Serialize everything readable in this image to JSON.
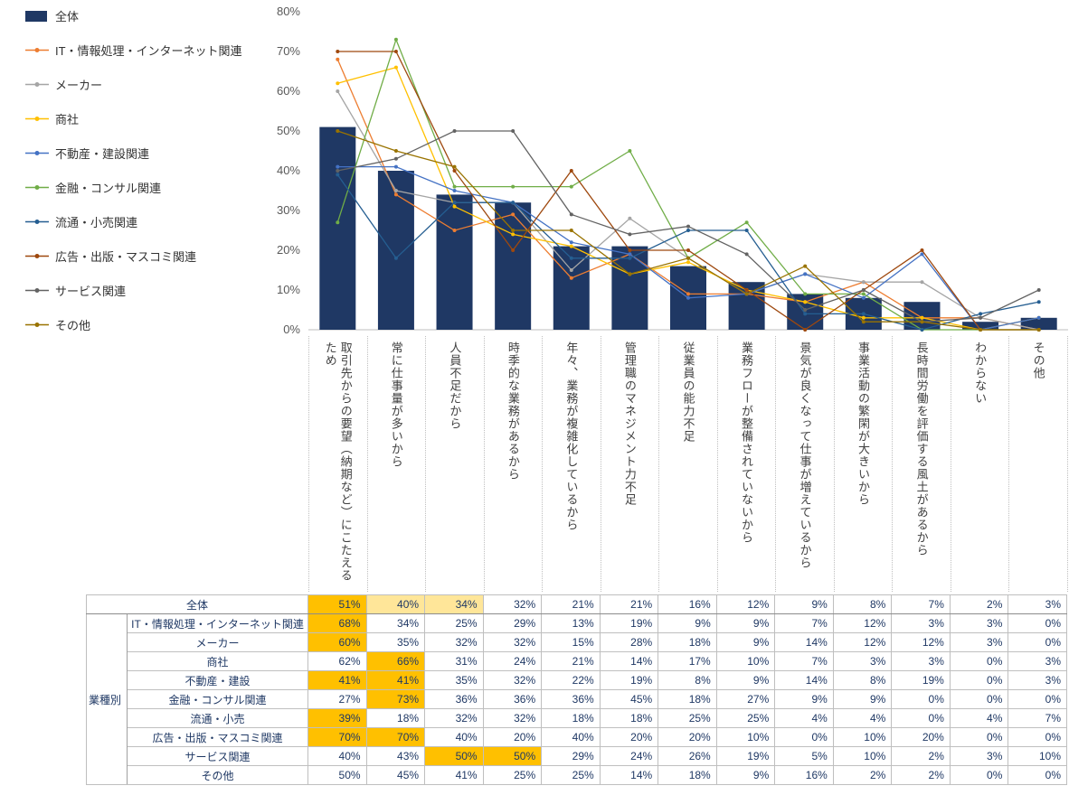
{
  "colors": {
    "bar": "#1F3864",
    "axis_text": "#595959",
    "axis_line": "#BFBFBF",
    "highlight_strong": "#FFC000",
    "highlight_light": "#FFE699"
  },
  "chart_data": {
    "type": "bar+line",
    "title": "",
    "ylim": [
      0,
      80
    ],
    "ytick_step": 10,
    "y_axis_format": "percent",
    "grid": false,
    "legend_position": "left",
    "categories": [
      "取引先からの要望（納期など）にこたえるため",
      "常に仕事量が多いから",
      "人員不足だから",
      "時季的な業務があるから",
      "年々、業務が複雑化しているから",
      "管理職のマネジメント力不足",
      "従業員の能力不足",
      "業務フローが整備されていないから",
      "景気が良くなって仕事が増えているから",
      "事業活動の繁閑が大きいから",
      "長時間労働を評価する風土があるから",
      "わからない",
      "その他"
    ],
    "bar_series": {
      "name": "全体",
      "color": "#1F3864",
      "values": [
        51,
        40,
        34,
        32,
        21,
        21,
        16,
        12,
        9,
        8,
        7,
        2,
        3
      ]
    },
    "line_series": [
      {
        "name": "IT・情報処理・インターネット関連",
        "color": "#ED7D31",
        "values": [
          68,
          34,
          25,
          29,
          13,
          19,
          9,
          9,
          7,
          12,
          3,
          3,
          0
        ]
      },
      {
        "name": "メーカー",
        "color": "#A5A5A5",
        "values": [
          60,
          35,
          32,
          32,
          15,
          28,
          18,
          9,
          14,
          12,
          12,
          3,
          0
        ]
      },
      {
        "name": "商社",
        "color": "#FFC000",
        "values": [
          62,
          66,
          31,
          24,
          21,
          14,
          17,
          10,
          7,
          3,
          3,
          0,
          3
        ]
      },
      {
        "name": "不動産・建設関連",
        "color": "#4472C4",
        "values": [
          41,
          41,
          35,
          32,
          22,
          19,
          8,
          9,
          14,
          8,
          19,
          0,
          3
        ]
      },
      {
        "name": "金融・コンサル関連",
        "color": "#70AD47",
        "values": [
          27,
          73,
          36,
          36,
          36,
          45,
          18,
          27,
          9,
          9,
          0,
          0,
          0
        ]
      },
      {
        "name": "流通・小売関連",
        "color": "#255E91",
        "values": [
          39,
          18,
          32,
          32,
          18,
          18,
          25,
          25,
          4,
          4,
          0,
          4,
          7
        ]
      },
      {
        "name": "広告・出版・マスコミ関連",
        "color": "#9E480E",
        "values": [
          70,
          70,
          40,
          20,
          40,
          20,
          20,
          10,
          0,
          10,
          20,
          0,
          0
        ]
      },
      {
        "name": "サービス関連",
        "color": "#636363",
        "values": [
          40,
          43,
          50,
          50,
          29,
          24,
          26,
          19,
          5,
          10,
          2,
          3,
          10
        ]
      },
      {
        "name": "その他",
        "color": "#997300",
        "values": [
          50,
          45,
          41,
          25,
          25,
          14,
          18,
          9,
          16,
          2,
          2,
          0,
          0
        ]
      }
    ]
  },
  "table": {
    "group_label": "業種別",
    "value_suffix": "%",
    "overall": {
      "label": "全体",
      "values": [
        51,
        40,
        34,
        32,
        21,
        21,
        16,
        12,
        9,
        8,
        7,
        2,
        3
      ],
      "highlights": {
        "0": "strong",
        "1": "light",
        "2": "light"
      }
    },
    "industry_rows": [
      {
        "label": "IT・情報処理・インターネット関連",
        "values": [
          68,
          34,
          25,
          29,
          13,
          19,
          9,
          9,
          7,
          12,
          3,
          3,
          0
        ],
        "highlights": {
          "0": "strong"
        }
      },
      {
        "label": "メーカー",
        "values": [
          60,
          35,
          32,
          32,
          15,
          28,
          18,
          9,
          14,
          12,
          12,
          3,
          0
        ],
        "highlights": {
          "0": "strong"
        }
      },
      {
        "label": "商社",
        "values": [
          62,
          66,
          31,
          24,
          21,
          14,
          17,
          10,
          7,
          3,
          3,
          0,
          3
        ],
        "highlights": {
          "1": "strong"
        }
      },
      {
        "label": "不動産・建設",
        "values": [
          41,
          41,
          35,
          32,
          22,
          19,
          8,
          9,
          14,
          8,
          19,
          0,
          3
        ],
        "highlights": {
          "0": "strong",
          "1": "strong"
        }
      },
      {
        "label": "金融・コンサル関連",
        "values": [
          27,
          73,
          36,
          36,
          36,
          45,
          18,
          27,
          9,
          9,
          0,
          0,
          0
        ],
        "highlights": {
          "1": "strong"
        }
      },
      {
        "label": "流通・小売",
        "values": [
          39,
          18,
          32,
          32,
          18,
          18,
          25,
          25,
          4,
          4,
          0,
          4,
          7
        ],
        "highlights": {
          "0": "strong"
        }
      },
      {
        "label": "広告・出版・マスコミ関連",
        "values": [
          70,
          70,
          40,
          20,
          40,
          20,
          20,
          10,
          0,
          10,
          20,
          0,
          0
        ],
        "highlights": {
          "0": "strong",
          "1": "strong"
        }
      },
      {
        "label": "サービス関連",
        "values": [
          40,
          43,
          50,
          50,
          29,
          24,
          26,
          19,
          5,
          10,
          2,
          3,
          10
        ],
        "highlights": {
          "2": "strong",
          "3": "strong"
        }
      },
      {
        "label": "その他",
        "values": [
          50,
          45,
          41,
          25,
          25,
          14,
          18,
          9,
          16,
          2,
          2,
          0,
          0
        ],
        "highlights": {}
      }
    ]
  }
}
